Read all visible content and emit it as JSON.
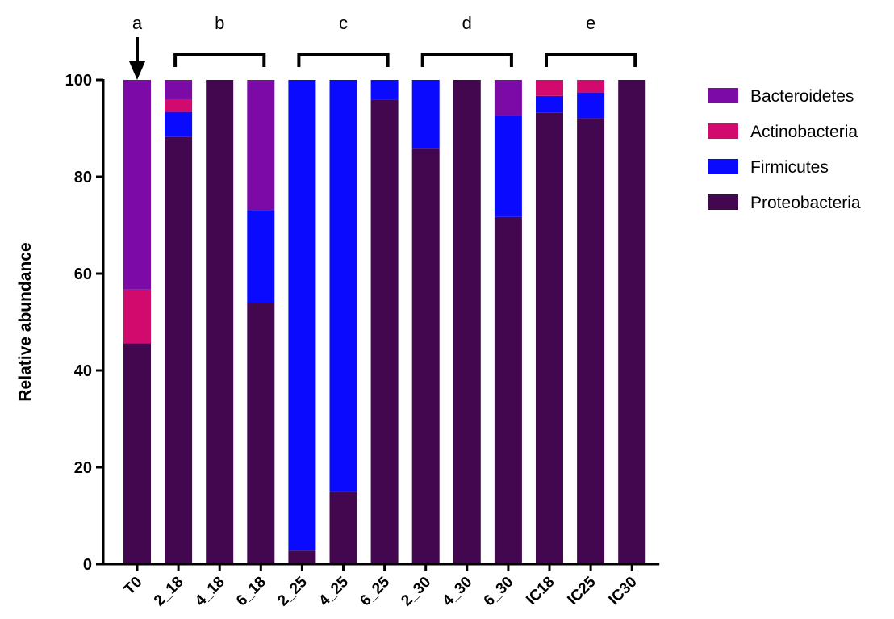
{
  "chart_data": {
    "type": "bar",
    "stacked": true,
    "categories": [
      "T0",
      "2_18",
      "4_18",
      "6_18",
      "2_25",
      "4_25",
      "6_25",
      "2_30",
      "4_30",
      "6_30",
      "IC18",
      "IC25",
      "IC30"
    ],
    "series": [
      {
        "name": "Proteobacteria",
        "color": "#43074f",
        "values": [
          45.6,
          88.2,
          100,
          54.0,
          2.8,
          14.9,
          95.9,
          85.8,
          100,
          71.7,
          93.2,
          92.1,
          100
        ]
      },
      {
        "name": "Firmicutes",
        "color": "#0a0aff",
        "values": [
          0,
          5.2,
          0,
          19.1,
          97.2,
          85.1,
          4.1,
          14.2,
          0,
          20.9,
          3.5,
          5.3,
          0
        ]
      },
      {
        "name": "Actinobacteria",
        "color": "#d30a6e",
        "values": [
          11.1,
          2.6,
          0,
          0,
          0,
          0,
          0,
          0,
          0,
          0,
          3.3,
          2.6,
          0
        ]
      },
      {
        "name": "Bacteroidetes",
        "color": "#7b0aa6",
        "values": [
          43.3,
          4.0,
          0,
          26.9,
          0,
          0,
          0,
          0,
          0,
          7.4,
          0,
          0,
          0
        ]
      }
    ],
    "ylabel": "Relative abundance",
    "xlabel": "",
    "ylim": [
      0,
      100
    ],
    "yticks": [
      0,
      20,
      40,
      60,
      80,
      100
    ],
    "legend_order": [
      "Bacteroidetes",
      "Actinobacteria",
      "Firmicutes",
      "Proteobacteria"
    ],
    "legend_position": "right",
    "grid": false,
    "annotations": {
      "arrow_target": "T0",
      "groups": [
        {
          "letter": "a",
          "categories": [
            "T0"
          ]
        },
        {
          "letter": "b",
          "categories": [
            "2_18",
            "4_18",
            "6_18"
          ]
        },
        {
          "letter": "c",
          "categories": [
            "2_25",
            "4_25",
            "6_25"
          ]
        },
        {
          "letter": "d",
          "categories": [
            "2_30",
            "4_30",
            "6_30"
          ]
        },
        {
          "letter": "e",
          "categories": [
            "IC18",
            "IC25",
            "IC30"
          ]
        }
      ]
    }
  }
}
